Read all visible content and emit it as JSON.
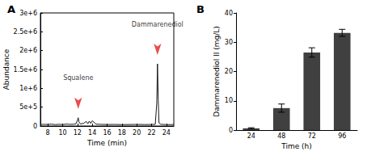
{
  "chart_data": [
    {
      "type": "line",
      "title": "A",
      "x_label": "Time (min)",
      "y_label": "Abundance",
      "x": [
        7,
        7.5,
        8,
        8.5,
        9,
        9.5,
        10,
        10.5,
        11,
        11.5,
        11.8,
        12.0,
        12.1,
        12.2,
        12.4,
        12.8,
        13.2,
        13.4,
        13.6,
        13.8,
        14.0,
        14.5,
        15,
        16,
        17,
        18,
        19,
        20,
        21,
        22,
        22.5,
        22.7,
        22.8,
        22.9,
        23.0,
        23.2,
        23.5,
        24,
        24.5,
        25
      ],
      "values": [
        40000,
        45000,
        42000,
        50000,
        38000,
        46000,
        40000,
        52000,
        44000,
        48000,
        60000,
        150000,
        220000,
        110000,
        55000,
        70000,
        120000,
        60000,
        130000,
        70000,
        140000,
        50000,
        45000,
        40000,
        42000,
        38000,
        40000,
        43000,
        39000,
        41000,
        45000,
        600000,
        1650000,
        700000,
        80000,
        50000,
        42000,
        40000,
        38000,
        40000
      ],
      "color": "#1a1a1a",
      "xlim": [
        7,
        25
      ],
      "xticks": [
        8,
        10,
        12,
        14,
        16,
        18,
        20,
        22,
        24
      ],
      "ylim": [
        0,
        3000000
      ],
      "yticks": [
        0,
        {
          "value": 500000,
          "label": "5e+5"
        },
        {
          "value": 1000000,
          "label": "1e+6"
        },
        {
          "value": 1500000,
          "label": "1.5e+6"
        },
        {
          "value": 2000000,
          "label": "2e+6"
        },
        {
          "value": 2500000,
          "label": "2.5e+6"
        },
        {
          "value": 3000000,
          "label": "3e+6"
        }
      ],
      "grid": false,
      "annotations": [
        {
          "text": "Squalene",
          "x": 12.1,
          "y": 220000
        },
        {
          "text": "Dammarenediol",
          "x": 22.8,
          "y": 1650000
        }
      ]
    },
    {
      "type": "bar",
      "title": "B",
      "x_label": "Time (h)",
      "y_label": "Dammarenediol II (mg/L)",
      "categories": [
        "24",
        "48",
        "72",
        "96"
      ],
      "values": [
        0.6,
        7.5,
        26.5,
        33.2
      ],
      "errors": [
        0.2,
        1.4,
        1.6,
        1.2
      ],
      "color": "#404040",
      "ylim": [
        0,
        40
      ],
      "yticks": [
        0,
        10,
        20,
        30,
        40
      ],
      "grid": false
    }
  ]
}
